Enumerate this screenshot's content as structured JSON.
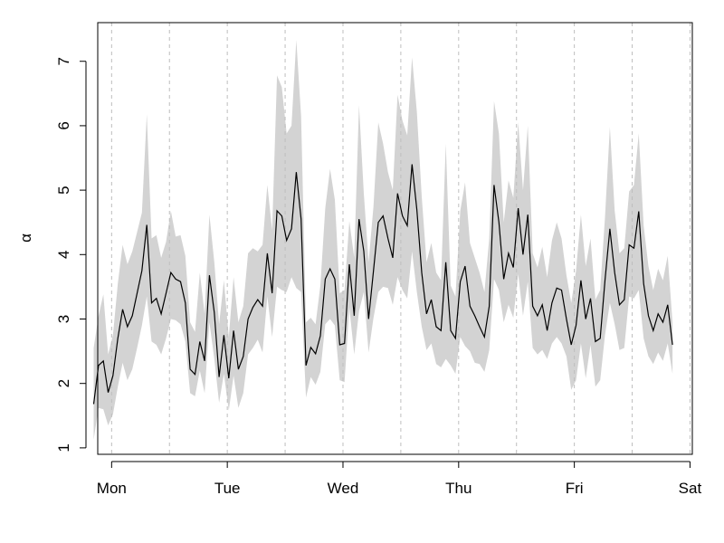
{
  "chart_data": {
    "type": "line",
    "title": "",
    "xlabel": "",
    "ylabel": "α",
    "ylim": [
      0.9,
      7.6
    ],
    "xlim": [
      -0.12,
      5.02
    ],
    "x_ticks": [
      {
        "value": 0,
        "label": "Mon"
      },
      {
        "value": 1,
        "label": "Tue"
      },
      {
        "value": 2,
        "label": "Wed"
      },
      {
        "value": 3,
        "label": "Thu"
      },
      {
        "value": 4,
        "label": "Fri"
      },
      {
        "value": 5,
        "label": "Sat"
      }
    ],
    "y_ticks": [
      1,
      2,
      3,
      4,
      5,
      6,
      7
    ],
    "vlines": [
      0,
      0.5,
      1,
      1.5,
      2,
      2.5,
      3,
      3.5,
      4,
      4.5,
      5
    ],
    "grid": false,
    "legend": "none",
    "colors": {
      "line": "#000000",
      "band": "#d3d3d3",
      "vline": "#bebebe",
      "axis": "#000000"
    },
    "x_start": -0.155,
    "x_step": 0.0417,
    "series": [
      {
        "values": [
          1.68,
          2.28,
          2.35,
          1.86,
          2.12,
          2.7,
          3.15,
          2.88,
          3.05,
          3.4,
          3.75,
          4.46,
          3.25,
          3.32,
          3.08,
          3.4,
          3.72,
          3.62,
          3.58,
          3.25,
          2.22,
          2.14,
          2.65,
          2.35,
          3.68,
          3.1,
          2.1,
          2.75,
          2.08,
          2.82,
          2.22,
          2.42,
          3.0,
          3.18,
          3.3,
          3.2,
          4.02,
          3.4,
          4.68,
          4.6,
          4.22,
          4.4,
          5.28,
          4.55,
          2.28,
          2.56,
          2.46,
          2.74,
          3.62,
          3.78,
          3.62,
          2.6,
          2.62,
          3.85,
          3.05,
          4.55,
          4.05,
          3.0,
          3.75,
          4.5,
          4.6,
          4.25,
          3.95,
          4.95,
          4.6,
          4.45,
          5.4,
          4.7,
          3.72,
          3.08,
          3.3,
          2.88,
          2.82,
          3.88,
          2.82,
          2.7,
          3.58,
          3.82,
          3.2,
          3.05,
          2.88,
          2.72,
          3.2,
          5.08,
          4.5,
          3.62,
          4.02,
          3.8,
          4.72,
          4.0,
          4.62,
          3.2,
          3.05,
          3.22,
          2.82,
          3.25,
          3.48,
          3.45,
          3.0,
          2.6,
          2.9,
          3.6,
          3.0,
          3.32,
          2.65,
          2.7,
          3.6,
          4.4,
          3.72,
          3.22,
          3.3,
          4.15,
          4.1,
          4.67,
          3.55,
          3.05,
          2.82,
          3.08,
          2.95,
          3.22,
          2.6
        ],
        "upper": [
          2.55,
          3.05,
          3.38,
          2.45,
          2.75,
          3.55,
          4.15,
          3.85,
          4.05,
          4.35,
          4.65,
          6.18,
          4.25,
          4.3,
          3.95,
          4.2,
          4.68,
          4.28,
          4.3,
          3.98,
          2.95,
          2.8,
          3.72,
          3.08,
          4.62,
          3.88,
          2.92,
          3.6,
          2.72,
          3.65,
          2.95,
          3.2,
          4.02,
          4.1,
          4.05,
          4.15,
          5.08,
          4.38,
          6.78,
          6.6,
          5.88,
          6.0,
          7.33,
          6.15,
          2.95,
          3.02,
          2.92,
          3.52,
          4.72,
          5.33,
          4.85,
          3.4,
          3.45,
          4.52,
          3.95,
          6.32,
          4.95,
          3.88,
          4.75,
          6.05,
          5.72,
          5.28,
          5.0,
          6.48,
          6.08,
          5.85,
          7.06,
          6.22,
          4.9,
          3.88,
          4.18,
          3.72,
          3.6,
          5.72,
          3.52,
          3.35,
          4.68,
          5.12,
          4.18,
          3.95,
          3.72,
          3.42,
          4.25,
          6.38,
          5.88,
          4.5,
          5.15,
          4.88,
          6.05,
          5.0,
          6.0,
          4.02,
          3.8,
          4.12,
          3.65,
          4.22,
          4.5,
          4.25,
          3.68,
          3.25,
          3.75,
          4.62,
          3.82,
          4.25,
          3.3,
          3.45,
          4.58,
          5.98,
          4.68,
          4.02,
          4.1,
          4.98,
          5.08,
          5.88,
          4.45,
          3.82,
          3.45,
          3.78,
          3.6,
          3.98,
          2.95
        ],
        "lower": [
          1.13,
          1.62,
          1.6,
          1.35,
          1.52,
          1.95,
          2.32,
          2.05,
          2.22,
          2.55,
          2.9,
          3.35,
          2.65,
          2.6,
          2.45,
          2.7,
          3.0,
          2.98,
          2.92,
          2.65,
          1.85,
          1.8,
          2.2,
          1.85,
          2.95,
          2.38,
          1.7,
          2.15,
          1.58,
          2.12,
          1.62,
          1.85,
          2.45,
          2.55,
          2.68,
          2.48,
          3.35,
          2.72,
          3.5,
          3.45,
          3.42,
          3.65,
          3.48,
          3.42,
          1.78,
          2.1,
          1.98,
          2.18,
          2.92,
          3.0,
          2.9,
          2.05,
          2.02,
          3.18,
          2.45,
          3.12,
          3.42,
          2.48,
          3.02,
          3.42,
          3.5,
          3.48,
          3.22,
          3.65,
          3.45,
          3.32,
          4.05,
          3.42,
          2.88,
          2.52,
          2.62,
          2.3,
          2.25,
          2.38,
          2.28,
          2.15,
          2.72,
          2.58,
          2.5,
          2.32,
          2.3,
          2.18,
          2.52,
          3.62,
          3.45,
          2.95,
          3.22,
          3.02,
          3.7,
          3.05,
          3.58,
          2.55,
          2.45,
          2.52,
          2.38,
          2.62,
          2.72,
          2.62,
          2.42,
          1.9,
          2.05,
          2.62,
          2.08,
          2.6,
          1.95,
          2.05,
          2.75,
          3.25,
          2.92,
          2.52,
          2.55,
          3.35,
          3.32,
          3.45,
          2.7,
          2.42,
          2.3,
          2.48,
          2.35,
          2.62,
          2.15
        ]
      }
    ]
  }
}
